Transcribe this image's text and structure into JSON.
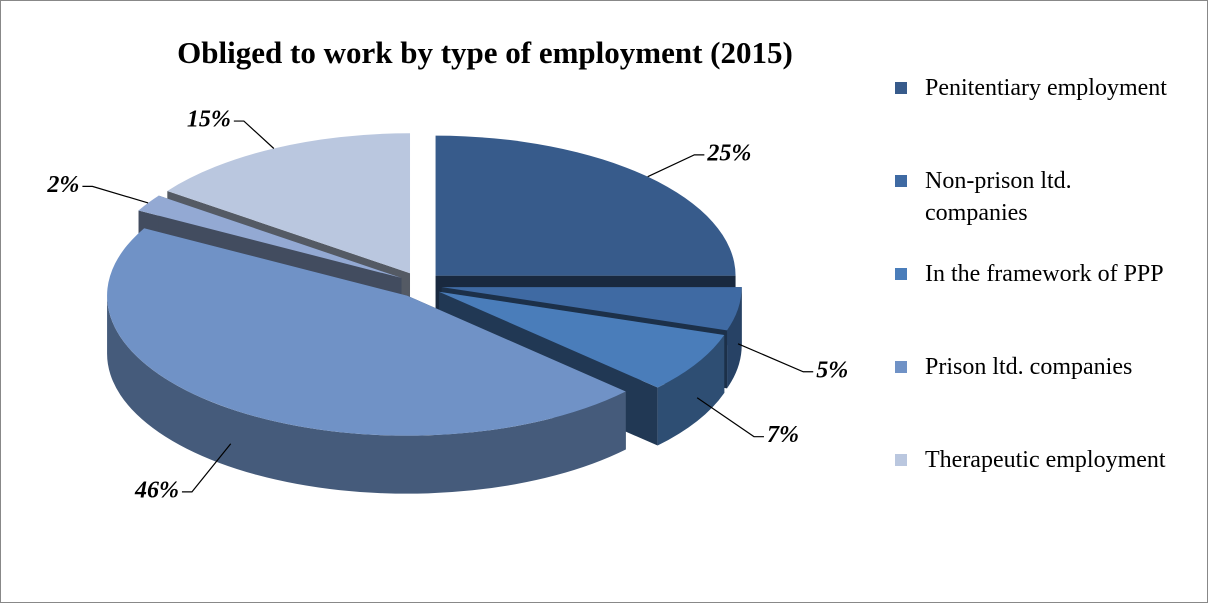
{
  "chart_data": {
    "type": "pie3d",
    "title": "Obliged to work by type of employment (2015)",
    "categories": [
      "Penitentiary employment",
      "Non-prison ltd. companies",
      "In the framework of PPP",
      "Prison ltd. companies",
      null,
      "Therapeutic employment"
    ],
    "values": [
      25,
      5,
      7,
      46,
      2,
      15
    ],
    "value_labels": [
      "25%",
      "5%",
      "7%",
      "46%",
      "2%",
      "15%"
    ],
    "colors": [
      "#375b8b",
      "#3f6aa3",
      "#4a7dba",
      "#7092c6",
      "#93a9d3",
      "#bac7df"
    ],
    "legend": "right"
  }
}
